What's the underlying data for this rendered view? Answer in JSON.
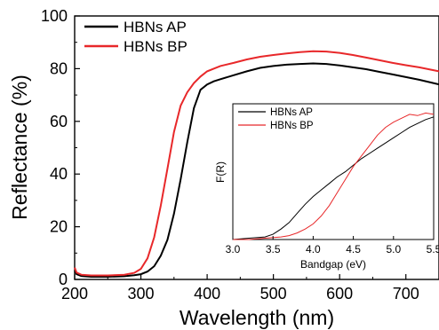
{
  "chart_data": [
    {
      "type": "line",
      "xlabel": "Wavelength (nm)",
      "ylabel": "Reflectance (%)",
      "xlim": [
        200,
        750
      ],
      "ylim": [
        0,
        100
      ],
      "x_ticks": [
        "200",
        "300",
        "400",
        "500",
        "600",
        "700"
      ],
      "y_ticks": [
        "0",
        "20",
        "40",
        "60",
        "80",
        "100"
      ],
      "grid": false,
      "legend_position": "top-left",
      "series": [
        {
          "name": "HBNs AP",
          "color": "#000000",
          "x": [
            200,
            203,
            210,
            225,
            250,
            275,
            290,
            300,
            310,
            320,
            330,
            340,
            350,
            360,
            370,
            380,
            390,
            400,
            410,
            420,
            440,
            460,
            480,
            500,
            520,
            540,
            560,
            580,
            600,
            620,
            640,
            660,
            680,
            700,
            720,
            740,
            750
          ],
          "y": [
            3.5,
            2.0,
            1.3,
            1.0,
            1.0,
            1.2,
            1.6,
            2.0,
            3.0,
            5.0,
            9.0,
            15.0,
            25.0,
            38.0,
            52.0,
            65.0,
            72.0,
            74.0,
            75.2,
            76.0,
            77.5,
            79.0,
            80.3,
            81.0,
            81.5,
            81.8,
            82.0,
            81.8,
            81.2,
            80.5,
            79.8,
            78.8,
            77.8,
            76.8,
            75.8,
            74.6,
            74.0
          ]
        },
        {
          "name": "HBNs BP",
          "color": "#e8282a",
          "x": [
            200,
            203,
            210,
            225,
            250,
            275,
            290,
            300,
            310,
            320,
            330,
            340,
            350,
            360,
            370,
            380,
            390,
            400,
            410,
            420,
            440,
            460,
            480,
            500,
            520,
            540,
            560,
            580,
            600,
            620,
            640,
            660,
            680,
            700,
            720,
            740,
            750
          ],
          "y": [
            4.5,
            2.6,
            1.8,
            1.5,
            1.5,
            1.8,
            2.5,
            4.0,
            8.0,
            16.0,
            28.0,
            42.0,
            56.0,
            66.0,
            71.0,
            74.5,
            77.0,
            79.0,
            80.0,
            81.0,
            82.2,
            83.5,
            84.5,
            85.2,
            85.8,
            86.3,
            86.6,
            86.5,
            86.0,
            85.2,
            84.2,
            83.2,
            82.2,
            81.3,
            80.5,
            79.5,
            79.0
          ]
        }
      ]
    },
    {
      "type": "line",
      "xlabel": "Bandgap (eV)",
      "ylabel": "F(R)",
      "xlim": [
        3.0,
        5.5
      ],
      "ylim": [
        0,
        1
      ],
      "x_ticks": [
        "3.0",
        "3.5",
        "4.0",
        "4.5",
        "5.0",
        "5.5"
      ],
      "grid": false,
      "legend_position": "top-left",
      "series": [
        {
          "name": "HBNs AP",
          "color": "#000000",
          "x": [
            3.0,
            3.2,
            3.4,
            3.5,
            3.6,
            3.7,
            3.8,
            3.9,
            4.0,
            4.1,
            4.2,
            4.3,
            4.4,
            4.5,
            4.6,
            4.7,
            4.8,
            4.9,
            5.0,
            5.1,
            5.2,
            5.3,
            5.4,
            5.5
          ],
          "y": [
            0.0,
            0.01,
            0.02,
            0.04,
            0.08,
            0.13,
            0.2,
            0.27,
            0.33,
            0.38,
            0.43,
            0.48,
            0.52,
            0.57,
            0.62,
            0.66,
            0.7,
            0.74,
            0.78,
            0.82,
            0.86,
            0.89,
            0.92,
            0.94
          ]
        },
        {
          "name": "HBNs BP",
          "color": "#e8282a",
          "x": [
            3.0,
            3.2,
            3.4,
            3.6,
            3.7,
            3.8,
            3.9,
            4.0,
            4.1,
            4.2,
            4.3,
            4.4,
            4.5,
            4.6,
            4.7,
            4.8,
            4.9,
            5.0,
            5.1,
            5.2,
            5.3,
            5.4,
            5.5
          ],
          "y": [
            0.0,
            0.0,
            0.01,
            0.02,
            0.03,
            0.05,
            0.08,
            0.12,
            0.18,
            0.26,
            0.36,
            0.46,
            0.56,
            0.64,
            0.72,
            0.8,
            0.86,
            0.9,
            0.93,
            0.96,
            0.95,
            0.97,
            0.96
          ]
        }
      ]
    }
  ]
}
